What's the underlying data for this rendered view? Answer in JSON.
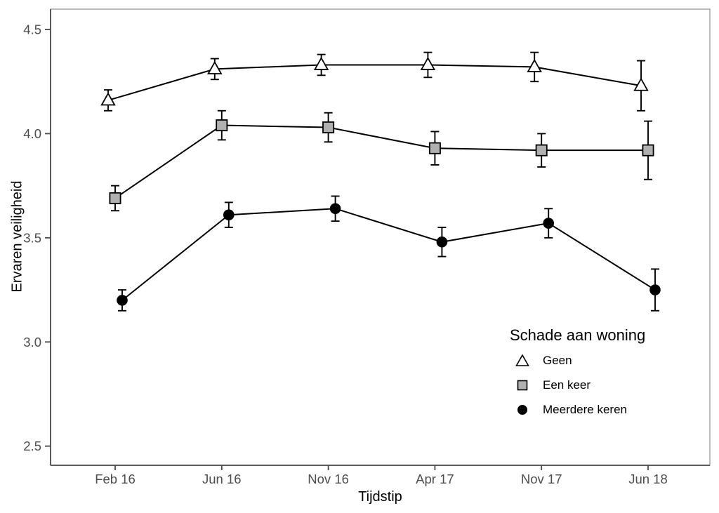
{
  "page": {
    "background": "#ffffff"
  },
  "chart_data": {
    "type": "line",
    "title": "",
    "xlabel": "Tijdstip",
    "ylabel": "Ervaren veiligheid",
    "categories": [
      "Feb 16",
      "Jun 16",
      "Nov 16",
      "Apr 17",
      "Nov 17",
      "Jun 18"
    ],
    "y_ticks": [
      "4.5",
      "4.0",
      "3.5",
      "3.0",
      "2.5"
    ],
    "ylim": [
      2.4,
      4.6
    ],
    "grid": false,
    "legend": {
      "title": "Schade aan woning",
      "position": "inside-right-bottom"
    },
    "series": [
      {
        "name": "Geen",
        "marker": "triangle-open",
        "marker_fill": "#ffffff",
        "values": [
          4.16,
          4.31,
          4.33,
          4.33,
          4.32,
          4.23
        ],
        "error_halfwidths": [
          0.05,
          0.05,
          0.05,
          0.06,
          0.07,
          0.12
        ]
      },
      {
        "name": "Een keer",
        "marker": "square-filled",
        "marker_fill": "#b0b0b0",
        "values": [
          3.69,
          4.04,
          4.03,
          3.93,
          3.92,
          3.92
        ],
        "error_halfwidths": [
          0.06,
          0.07,
          0.07,
          0.08,
          0.08,
          0.14
        ]
      },
      {
        "name": "Meerdere keren",
        "marker": "circle-filled",
        "marker_fill": "#000000",
        "values": [
          3.2,
          3.61,
          3.64,
          3.48,
          3.57,
          3.25
        ],
        "error_halfwidths": [
          0.05,
          0.06,
          0.06,
          0.07,
          0.07,
          0.1
        ]
      }
    ],
    "colors": {
      "line": "#000000",
      "marker_stroke": "#000000",
      "axis_text": "#4d4d4d",
      "axis_title": "#000000",
      "panel_border": "#999999",
      "axis_line": "#4a4a4a",
      "background": "#ffffff"
    }
  }
}
